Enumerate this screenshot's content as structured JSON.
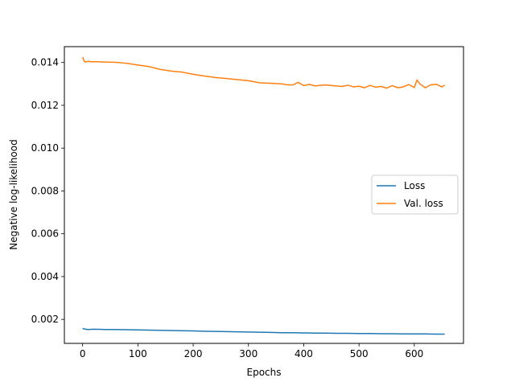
{
  "chart_data": {
    "type": "line",
    "title": "",
    "xlabel": "Epochs",
    "ylabel": "Negative log-likelihood",
    "xlim": [
      -33,
      689
    ],
    "ylim": [
      0.00088,
      0.01474
    ],
    "xticks": [
      0,
      100,
      200,
      300,
      400,
      500,
      600
    ],
    "yticks": [
      0.002,
      0.004,
      0.006,
      0.008,
      0.01,
      0.012,
      0.014
    ],
    "ytick_labels": [
      "0.002",
      "0.004",
      "0.006",
      "0.008",
      "0.010",
      "0.012",
      "0.014"
    ],
    "grid": false,
    "legend_position": "center-right",
    "series": [
      {
        "name": "Loss",
        "color": "#1f77b4",
        "x": [
          0,
          5,
          10,
          20,
          40,
          60,
          80,
          100,
          120,
          140,
          160,
          180,
          200,
          220,
          240,
          260,
          280,
          300,
          320,
          340,
          360,
          380,
          400,
          420,
          440,
          460,
          480,
          500,
          520,
          540,
          560,
          580,
          600,
          620,
          640,
          655
        ],
        "y": [
          0.00158,
          0.00154,
          0.00153,
          0.00154,
          0.00153,
          0.00153,
          0.00152,
          0.00151,
          0.0015,
          0.00149,
          0.00148,
          0.00147,
          0.00146,
          0.00145,
          0.00144,
          0.00143,
          0.00142,
          0.00141,
          0.0014,
          0.00139,
          0.00138,
          0.00138,
          0.00137,
          0.00136,
          0.00136,
          0.00135,
          0.00135,
          0.00134,
          0.00134,
          0.00133,
          0.00133,
          0.00132,
          0.00132,
          0.00132,
          0.00131,
          0.00131
        ]
      },
      {
        "name": "Val. loss",
        "color": "#ff7f0e",
        "x": [
          0,
          3,
          6,
          10,
          15,
          20,
          30,
          40,
          60,
          80,
          100,
          120,
          140,
          160,
          180,
          200,
          220,
          240,
          260,
          280,
          300,
          310,
          320,
          340,
          360,
          370,
          380,
          390,
          400,
          410,
          420,
          440,
          460,
          470,
          480,
          490,
          500,
          510,
          520,
          530,
          540,
          550,
          560,
          570,
          580,
          590,
          600,
          605,
          610,
          620,
          630,
          640,
          650,
          655
        ],
        "y": [
          0.01425,
          0.01405,
          0.01402,
          0.01406,
          0.01403,
          0.01404,
          0.01403,
          0.01402,
          0.01401,
          0.01396,
          0.01388,
          0.01381,
          0.01368,
          0.0136,
          0.01355,
          0.01345,
          0.01337,
          0.0133,
          0.01325,
          0.0132,
          0.01315,
          0.0131,
          0.01305,
          0.01303,
          0.013,
          0.01296,
          0.01295,
          0.01307,
          0.01292,
          0.01298,
          0.01291,
          0.01295,
          0.0129,
          0.01288,
          0.01294,
          0.01286,
          0.01289,
          0.01282,
          0.01293,
          0.01285,
          0.01288,
          0.0128,
          0.01292,
          0.01282,
          0.01286,
          0.01297,
          0.01283,
          0.01318,
          0.013,
          0.01282,
          0.01296,
          0.01298,
          0.01286,
          0.01294
        ]
      }
    ]
  }
}
